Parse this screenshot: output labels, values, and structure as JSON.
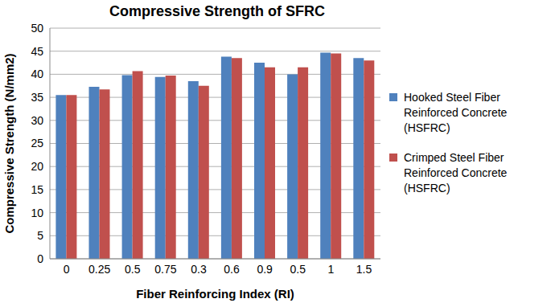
{
  "chart_data": {
    "type": "bar",
    "title": "Compressive Strength of SFRC",
    "x_label": "Fiber Reinforcing Index (RI)",
    "y_label": "Compressive Strength (N/mm2)",
    "categories": [
      "0",
      "0.25",
      "0.5",
      "0.75",
      "0.3",
      "0.6",
      "0.9",
      "0.5",
      "1",
      "1.5"
    ],
    "series": [
      {
        "name": "Hooked Steel Fiber Reinforced Concrete (HSFRC)",
        "color": "#4f81bd",
        "values": [
          35.5,
          37.3,
          39.8,
          39.4,
          38.5,
          43.8,
          42.5,
          40.0,
          44.7,
          43.5
        ]
      },
      {
        "name": "Crimped Steel Fiber Reinforced Concrete (HSFRC)",
        "color": "#c0504d",
        "values": [
          35.5,
          36.7,
          40.7,
          39.7,
          37.5,
          43.5,
          41.5,
          41.5,
          44.5,
          43.0
        ]
      }
    ],
    "ylim": [
      0,
      50
    ],
    "yticks": [
      0,
      5,
      10,
      15,
      20,
      25,
      30,
      35,
      40,
      45,
      50
    ],
    "grid": true,
    "legend": "right"
  }
}
